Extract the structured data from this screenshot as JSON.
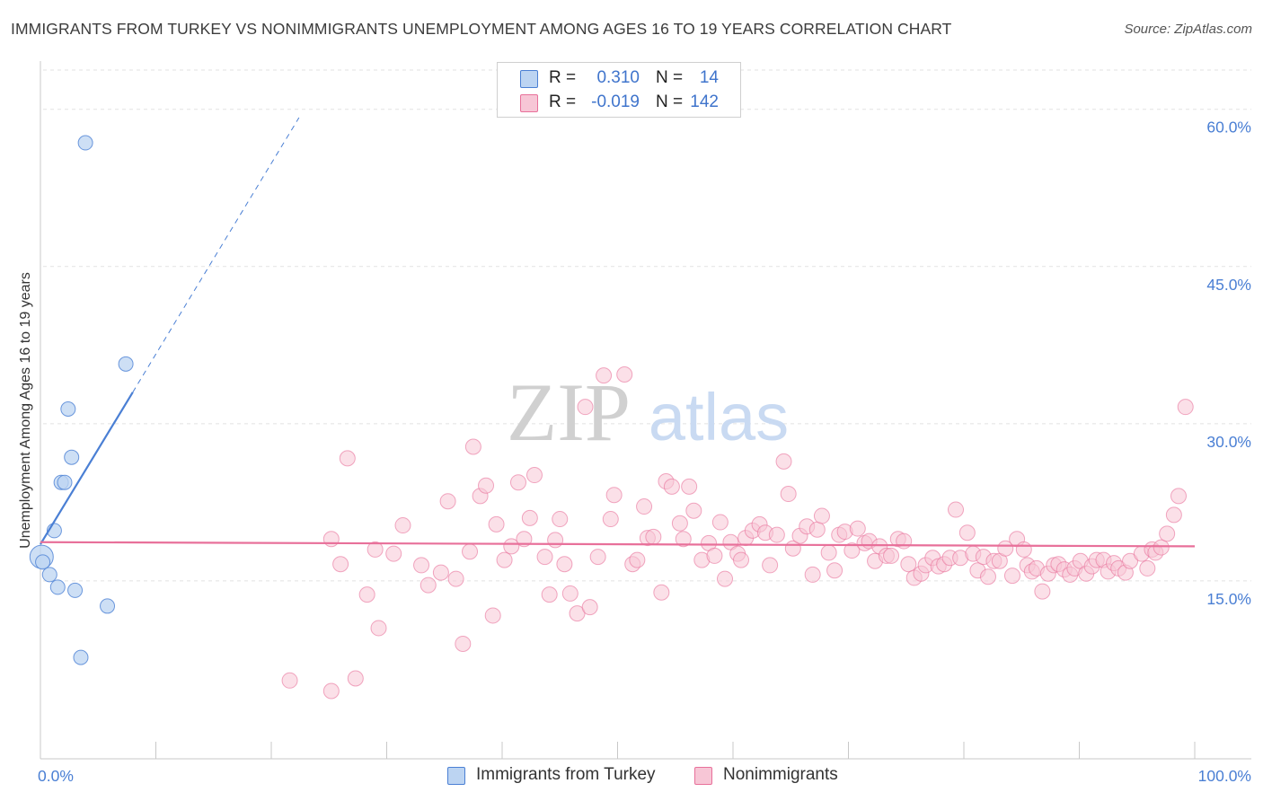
{
  "chart_data": {
    "type": "scatter",
    "title": "IMMIGRANTS FROM TURKEY VS NONIMMIGRANTS UNEMPLOYMENT AMONG AGES 16 TO 19 YEARS CORRELATION CHART",
    "source": "Source: ZipAtlas.com",
    "ylabel": "Unemployment Among Ages 16 to 19 years",
    "xlim": [
      0,
      100
    ],
    "ylim": [
      0,
      64
    ],
    "x_tick_labels": [
      "0.0%",
      "100.0%"
    ],
    "y_ticks": [
      {
        "value": 15,
        "label": "15.0%"
      },
      {
        "value": 30,
        "label": "30.0%"
      },
      {
        "value": 45,
        "label": "45.0%"
      },
      {
        "value": 60,
        "label": "60.0%"
      }
    ],
    "watermark": {
      "zip": "ZIP",
      "atlas": "atlas"
    },
    "legend": {
      "r_label": "R =",
      "n_label": "N =",
      "entries": [
        {
          "r": "0.310",
          "n": "14"
        },
        {
          "r": "-0.019",
          "n": "142"
        }
      ]
    },
    "series": [
      {
        "name": "Immigrants from Turkey",
        "color": "#4a7fd4",
        "fill": "#bcd4f2",
        "trend": {
          "x0": 0,
          "y0": 18.5,
          "x1": 8,
          "y1": 33,
          "dash_to_x": 22.4,
          "dash_to_y": 59.2
        },
        "points": [
          [
            0.1,
            17.3,
            2
          ],
          [
            0.2,
            16.8,
            1
          ],
          [
            0.8,
            15.6,
            1
          ],
          [
            1.2,
            19.8,
            1
          ],
          [
            1.5,
            14.4,
            1
          ],
          [
            1.8,
            24.4,
            1
          ],
          [
            2.1,
            24.4,
            1
          ],
          [
            2.4,
            31.4,
            1
          ],
          [
            2.7,
            26.8,
            1
          ],
          [
            3,
            14.1,
            1
          ],
          [
            3.5,
            7.7,
            1
          ],
          [
            3.9,
            56.8,
            1
          ],
          [
            5.8,
            12.6,
            1
          ],
          [
            7.4,
            35.7,
            1
          ]
        ]
      },
      {
        "name": "Nonimmigrants",
        "color": "#e8709a",
        "fill": "#f7c6d6",
        "trend": {
          "x0": 0,
          "y0": 18.7,
          "x1": 100,
          "y1": 18.3
        },
        "points": [
          [
            21.6,
            5.5
          ],
          [
            25.2,
            4.5
          ],
          [
            25.2,
            19
          ],
          [
            26,
            16.6
          ],
          [
            26.6,
            26.7
          ],
          [
            27.3,
            5.7
          ],
          [
            28.3,
            13.7
          ],
          [
            29,
            18
          ],
          [
            29.3,
            10.5
          ],
          [
            30.6,
            17.6
          ],
          [
            31.4,
            20.3
          ],
          [
            33,
            16.5
          ],
          [
            33.6,
            14.6
          ],
          [
            34.7,
            15.8
          ],
          [
            35.3,
            22.6
          ],
          [
            36,
            15.2
          ],
          [
            36.6,
            9
          ],
          [
            37.2,
            17.8
          ],
          [
            37.5,
            27.8
          ],
          [
            38.1,
            23.1
          ],
          [
            38.6,
            24.1
          ],
          [
            39.2,
            11.7
          ],
          [
            39.5,
            20.4
          ],
          [
            40.2,
            17
          ],
          [
            40.8,
            18.3
          ],
          [
            41.4,
            24.4
          ],
          [
            41.9,
            19
          ],
          [
            42.4,
            21
          ],
          [
            42.8,
            25.1
          ],
          [
            43.7,
            17.3
          ],
          [
            44.1,
            13.7
          ],
          [
            44.6,
            18.9
          ],
          [
            45,
            20.9
          ],
          [
            45.4,
            16.6
          ],
          [
            45.9,
            13.8
          ],
          [
            46.5,
            11.9
          ],
          [
            47.2,
            31.6
          ],
          [
            47.6,
            12.5
          ],
          [
            48.3,
            17.3
          ],
          [
            48.8,
            34.6
          ],
          [
            49.4,
            20.9
          ],
          [
            49.7,
            23.2
          ],
          [
            50.6,
            34.7
          ],
          [
            51.3,
            16.6
          ],
          [
            51.7,
            17
          ],
          [
            52.3,
            22.1
          ],
          [
            52.6,
            19.1
          ],
          [
            53.1,
            19.2
          ],
          [
            53.8,
            13.9
          ],
          [
            54.2,
            24.5
          ],
          [
            54.7,
            24
          ],
          [
            55.4,
            20.5
          ],
          [
            55.7,
            19
          ],
          [
            56.2,
            24
          ],
          [
            56.6,
            21.7
          ],
          [
            57.3,
            17
          ],
          [
            57.9,
            18.6
          ],
          [
            58.4,
            17.4
          ],
          [
            58.9,
            20.6
          ],
          [
            59.3,
            15.2
          ],
          [
            59.8,
            18.7
          ],
          [
            60.4,
            17.6
          ],
          [
            60.7,
            17
          ],
          [
            61.1,
            19.1
          ],
          [
            61.7,
            19.8
          ],
          [
            62.3,
            20.4
          ],
          [
            62.8,
            19.6
          ],
          [
            63.2,
            16.5
          ],
          [
            63.8,
            19.4
          ],
          [
            64.4,
            26.4
          ],
          [
            64.8,
            23.3
          ],
          [
            65.2,
            18.1
          ],
          [
            65.8,
            19.3
          ],
          [
            66.4,
            20.2
          ],
          [
            66.9,
            15.6
          ],
          [
            67.3,
            19.9
          ],
          [
            67.7,
            21.2
          ],
          [
            68.3,
            17.7
          ],
          [
            68.8,
            16
          ],
          [
            69.2,
            19.4
          ],
          [
            69.7,
            19.7
          ],
          [
            70.3,
            17.9
          ],
          [
            70.8,
            20
          ],
          [
            71.4,
            18.6
          ],
          [
            71.8,
            18.8
          ],
          [
            72.3,
            16.9
          ],
          [
            72.7,
            18.3
          ],
          [
            73.3,
            17.4
          ],
          [
            73.7,
            17.4
          ],
          [
            74.3,
            19
          ],
          [
            74.8,
            18.8
          ],
          [
            75.2,
            16.6
          ],
          [
            75.7,
            15.3
          ],
          [
            76.3,
            15.7
          ],
          [
            76.7,
            16.5
          ],
          [
            77.3,
            17.2
          ],
          [
            77.8,
            16.4
          ],
          [
            78.3,
            16.6
          ],
          [
            78.8,
            17.2
          ],
          [
            79.3,
            21.8
          ],
          [
            79.7,
            17.2
          ],
          [
            80.3,
            19.6
          ],
          [
            80.8,
            17.6
          ],
          [
            81.2,
            16
          ],
          [
            81.7,
            17.3
          ],
          [
            82.1,
            15.4
          ],
          [
            82.6,
            16.9
          ],
          [
            83.1,
            16.9
          ],
          [
            83.6,
            18.1
          ],
          [
            84.2,
            15.5
          ],
          [
            84.6,
            19
          ],
          [
            85.2,
            18
          ],
          [
            85.5,
            16.5
          ],
          [
            85.9,
            15.9
          ],
          [
            86.3,
            16.2
          ],
          [
            86.8,
            14
          ],
          [
            87.3,
            15.7
          ],
          [
            87.8,
            16.5
          ],
          [
            88.2,
            16.6
          ],
          [
            88.7,
            16.1
          ],
          [
            89.2,
            15.6
          ],
          [
            89.6,
            16.2
          ],
          [
            90.1,
            16.9
          ],
          [
            90.6,
            15.7
          ],
          [
            91.1,
            16.4
          ],
          [
            91.5,
            17
          ],
          [
            92.1,
            17
          ],
          [
            92.5,
            15.9
          ],
          [
            93,
            16.7
          ],
          [
            93.4,
            16.2
          ],
          [
            94,
            15.8
          ],
          [
            94.4,
            16.9
          ],
          [
            95.4,
            17.6
          ],
          [
            95.9,
            16.2
          ],
          [
            96.3,
            18
          ],
          [
            96.6,
            17.7
          ],
          [
            97.1,
            18.2
          ],
          [
            97.6,
            19.5
          ],
          [
            98.2,
            21.3
          ],
          [
            98.6,
            23.1
          ],
          [
            99.2,
            31.6
          ]
        ]
      }
    ]
  }
}
